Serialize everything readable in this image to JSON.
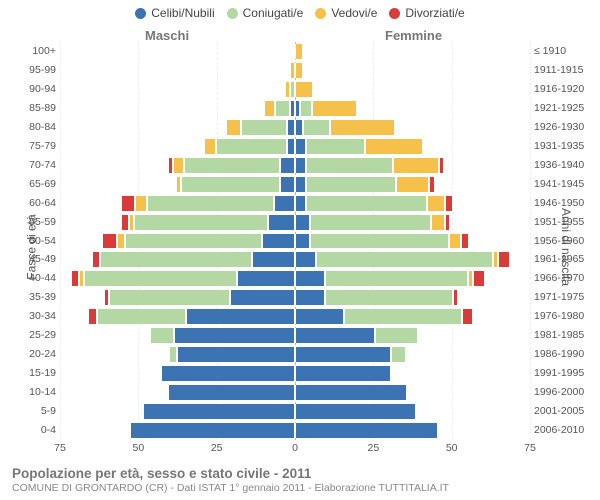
{
  "chart": {
    "type": "population-pyramid",
    "title": "Popolazione per età, sesso e stato civile - 2011",
    "subtitle": "COMUNE DI GRONTARDO (CR) - Dati ISTAT 1° gennaio 2011 - Elaborazione TUTTITALIA.IT",
    "legend": [
      {
        "label": "Celibi/Nubili",
        "color": "#3b73b3"
      },
      {
        "label": "Coniugati/e",
        "color": "#b3d8a4"
      },
      {
        "label": "Vedovi/e",
        "color": "#f6c14a"
      },
      {
        "label": "Divorziati/e",
        "color": "#d93b3b"
      }
    ],
    "groups": {
      "male": "Maschi",
      "female": "Femmine"
    },
    "axis_left_title": "Fasce di età",
    "axis_right_title": "Anni di nascita",
    "x_ticks": [
      75,
      50,
      25,
      0,
      25,
      50,
      75
    ],
    "x_max": 75,
    "colors": {
      "single": "#3b73b3",
      "married": "#b3d8a4",
      "widowed": "#f6c14a",
      "divorced": "#d93b3b",
      "grid": "#eeeeee",
      "center": "#bbbbbb",
      "text": "#555555",
      "bg": "#ffffff"
    },
    "rows": [
      {
        "age": "100+",
        "birth": "≤ 1910",
        "m": {
          "s": 0,
          "c": 0,
          "w": 0,
          "d": 0
        },
        "f": {
          "s": 0,
          "c": 0,
          "w": 2,
          "d": 0
        }
      },
      {
        "age": "95-99",
        "birth": "1911-1915",
        "m": {
          "s": 0,
          "c": 0,
          "w": 1,
          "d": 0
        },
        "f": {
          "s": 0,
          "c": 0,
          "w": 2,
          "d": 0
        }
      },
      {
        "age": "90-94",
        "birth": "1916-1920",
        "m": {
          "s": 0,
          "c": 1,
          "w": 1,
          "d": 0
        },
        "f": {
          "s": 0,
          "c": 0,
          "w": 5,
          "d": 0
        }
      },
      {
        "age": "85-89",
        "birth": "1921-1925",
        "m": {
          "s": 1,
          "c": 4,
          "w": 3,
          "d": 0
        },
        "f": {
          "s": 1,
          "c": 3,
          "w": 14,
          "d": 0
        }
      },
      {
        "age": "80-84",
        "birth": "1926-1930",
        "m": {
          "s": 2,
          "c": 14,
          "w": 4,
          "d": 0
        },
        "f": {
          "s": 2,
          "c": 8,
          "w": 20,
          "d": 0
        }
      },
      {
        "age": "75-79",
        "birth": "1931-1935",
        "m": {
          "s": 2,
          "c": 22,
          "w": 3,
          "d": 0
        },
        "f": {
          "s": 3,
          "c": 18,
          "w": 18,
          "d": 0
        }
      },
      {
        "age": "70-74",
        "birth": "1936-1940",
        "m": {
          "s": 4,
          "c": 30,
          "w": 3,
          "d": 1
        },
        "f": {
          "s": 3,
          "c": 27,
          "w": 14,
          "d": 1
        }
      },
      {
        "age": "65-69",
        "birth": "1941-1945",
        "m": {
          "s": 4,
          "c": 31,
          "w": 1,
          "d": 0
        },
        "f": {
          "s": 3,
          "c": 28,
          "w": 10,
          "d": 1
        }
      },
      {
        "age": "60-64",
        "birth": "1946-1950",
        "m": {
          "s": 6,
          "c": 40,
          "w": 3,
          "d": 4
        },
        "f": {
          "s": 3,
          "c": 38,
          "w": 5,
          "d": 2
        }
      },
      {
        "age": "55-59",
        "birth": "1951-1955",
        "m": {
          "s": 8,
          "c": 42,
          "w": 1,
          "d": 2
        },
        "f": {
          "s": 4,
          "c": 38,
          "w": 4,
          "d": 1
        }
      },
      {
        "age": "50-54",
        "birth": "1956-1960",
        "m": {
          "s": 10,
          "c": 43,
          "w": 2,
          "d": 4
        },
        "f": {
          "s": 4,
          "c": 44,
          "w": 3,
          "d": 2
        }
      },
      {
        "age": "45-49",
        "birth": "1961-1965",
        "m": {
          "s": 13,
          "c": 48,
          "w": 0,
          "d": 2
        },
        "f": {
          "s": 6,
          "c": 56,
          "w": 1,
          "d": 3
        }
      },
      {
        "age": "40-44",
        "birth": "1966-1970",
        "m": {
          "s": 18,
          "c": 48,
          "w": 1,
          "d": 2
        },
        "f": {
          "s": 9,
          "c": 45,
          "w": 1,
          "d": 3
        }
      },
      {
        "age": "35-39",
        "birth": "1971-1975",
        "m": {
          "s": 20,
          "c": 38,
          "w": 0,
          "d": 1
        },
        "f": {
          "s": 9,
          "c": 40,
          "w": 0,
          "d": 1
        }
      },
      {
        "age": "30-34",
        "birth": "1976-1980",
        "m": {
          "s": 34,
          "c": 28,
          "w": 0,
          "d": 2
        },
        "f": {
          "s": 15,
          "c": 37,
          "w": 0,
          "d": 3
        }
      },
      {
        "age": "25-29",
        "birth": "1981-1985",
        "m": {
          "s": 38,
          "c": 7,
          "w": 0,
          "d": 0
        },
        "f": {
          "s": 25,
          "c": 13,
          "w": 0,
          "d": 0
        }
      },
      {
        "age": "20-24",
        "birth": "1986-1990",
        "m": {
          "s": 37,
          "c": 2,
          "w": 0,
          "d": 0
        },
        "f": {
          "s": 30,
          "c": 4,
          "w": 0,
          "d": 0
        }
      },
      {
        "age": "15-19",
        "birth": "1991-1995",
        "m": {
          "s": 42,
          "c": 0,
          "w": 0,
          "d": 0
        },
        "f": {
          "s": 30,
          "c": 0,
          "w": 0,
          "d": 0
        }
      },
      {
        "age": "10-14",
        "birth": "1996-2000",
        "m": {
          "s": 40,
          "c": 0,
          "w": 0,
          "d": 0
        },
        "f": {
          "s": 35,
          "c": 0,
          "w": 0,
          "d": 0
        }
      },
      {
        "age": "5-9",
        "birth": "2001-2005",
        "m": {
          "s": 48,
          "c": 0,
          "w": 0,
          "d": 0
        },
        "f": {
          "s": 38,
          "c": 0,
          "w": 0,
          "d": 0
        }
      },
      {
        "age": "0-4",
        "birth": "2006-2010",
        "m": {
          "s": 52,
          "c": 0,
          "w": 0,
          "d": 0
        },
        "f": {
          "s": 45,
          "c": 0,
          "w": 0,
          "d": 0
        }
      }
    ]
  }
}
